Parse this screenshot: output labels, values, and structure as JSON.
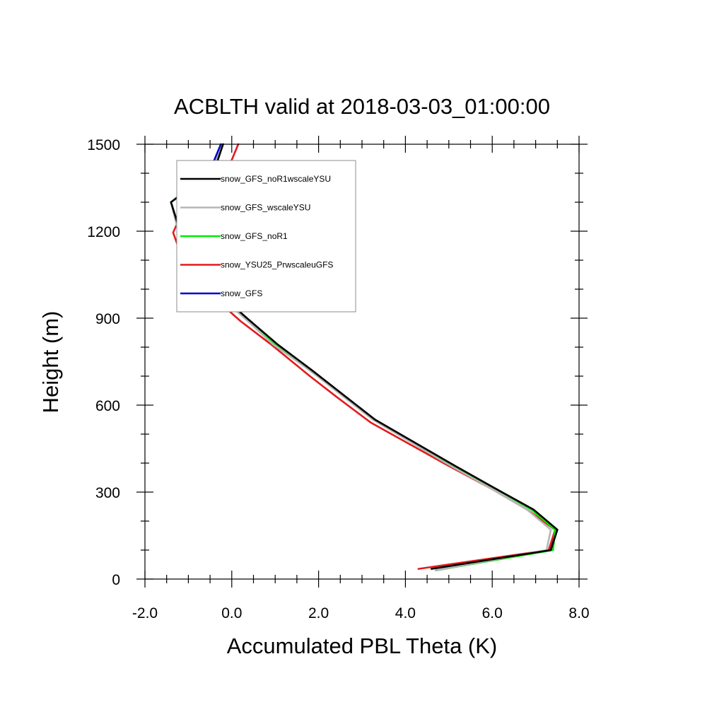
{
  "chart_data": {
    "type": "line",
    "title": "ACBLTH valid at 2018-03-03_01:00:00",
    "xlabel": "Accumulated PBL Theta (K)",
    "ylabel": "Height (m)",
    "xlim": [
      -2.0,
      8.0
    ],
    "ylim": [
      0,
      1500
    ],
    "x_ticks": [
      -2.0,
      0.0,
      2.0,
      4.0,
      6.0,
      8.0
    ],
    "x_tick_labels": [
      "-2.0",
      "0.0",
      "2.0",
      "4.0",
      "6.0",
      "8.0"
    ],
    "y_ticks": [
      0,
      300,
      600,
      900,
      1200,
      1500
    ],
    "y_tick_labels": [
      "0",
      "300",
      "600",
      "900",
      "1200",
      "1500"
    ],
    "grid": false,
    "legend_position": "top-left",
    "series": [
      {
        "name": "snow_GFS",
        "color": "#0000cc",
        "points": [
          [
            4.7,
            30
          ],
          [
            7.3,
            100
          ],
          [
            7.5,
            170
          ],
          [
            6.9,
            240
          ],
          [
            6.1,
            310
          ],
          [
            5.1,
            390
          ],
          [
            3.3,
            550
          ],
          [
            1.8,
            720
          ],
          [
            1.0,
            810
          ],
          [
            0.3,
            900
          ],
          [
            -0.3,
            980
          ],
          [
            -0.8,
            1070
          ],
          [
            -1.15,
            1180
          ],
          [
            -1.4,
            1300
          ],
          [
            -0.5,
            1410
          ],
          [
            -0.25,
            1500
          ]
        ]
      },
      {
        "name": "snow_YSU25_PrwscaleuGFS",
        "color": "#e41a1c",
        "points": [
          [
            4.3,
            35
          ],
          [
            7.3,
            100
          ],
          [
            7.45,
            170
          ],
          [
            6.8,
            240
          ],
          [
            6.0,
            310
          ],
          [
            5.0,
            390
          ],
          [
            3.2,
            540
          ],
          [
            2.4,
            630
          ],
          [
            1.8,
            700
          ],
          [
            0.9,
            810
          ],
          [
            0.2,
            890
          ],
          [
            -0.4,
            970
          ],
          [
            -0.7,
            1030
          ],
          [
            -1.1,
            1090
          ],
          [
            -1.35,
            1195
          ],
          [
            -1.05,
            1300
          ],
          [
            -0.1,
            1410
          ],
          [
            0.15,
            1500
          ]
        ]
      },
      {
        "name": "snow_GFS_noR1",
        "color": "#00ee00",
        "points": [
          [
            4.7,
            30
          ],
          [
            7.4,
            100
          ],
          [
            7.45,
            170
          ],
          [
            6.9,
            240
          ],
          [
            6.1,
            310
          ],
          [
            5.1,
            390
          ],
          [
            3.3,
            550
          ],
          [
            1.8,
            720
          ],
          [
            1.0,
            810
          ],
          [
            0.3,
            900
          ],
          [
            -0.3,
            980
          ],
          [
            -0.8,
            1070
          ],
          [
            -1.15,
            1180
          ],
          [
            -1.4,
            1300
          ],
          [
            -0.45,
            1410
          ],
          [
            -0.2,
            1500
          ]
        ]
      },
      {
        "name": "snow_GFS_wscaleYSU",
        "color": "#b5b5b5",
        "points": [
          [
            4.7,
            30
          ],
          [
            7.25,
            100
          ],
          [
            7.35,
            170
          ],
          [
            6.8,
            240
          ],
          [
            6.0,
            310
          ],
          [
            5.05,
            390
          ],
          [
            3.25,
            550
          ],
          [
            1.8,
            720
          ],
          [
            0.95,
            810
          ],
          [
            0.3,
            900
          ],
          [
            -0.3,
            980
          ],
          [
            -0.85,
            1070
          ],
          [
            -1.2,
            1180
          ],
          [
            -1.4,
            1300
          ],
          [
            -0.45,
            1410
          ],
          [
            -0.2,
            1500
          ]
        ]
      },
      {
        "name": "snow_GFS_noR1wscaleYSU",
        "color": "#000000",
        "points": [
          [
            4.6,
            35
          ],
          [
            7.35,
            100
          ],
          [
            7.5,
            170
          ],
          [
            6.95,
            240
          ],
          [
            6.1,
            310
          ],
          [
            5.15,
            390
          ],
          [
            3.3,
            550
          ],
          [
            1.85,
            720
          ],
          [
            1.05,
            810
          ],
          [
            0.35,
            900
          ],
          [
            -0.25,
            980
          ],
          [
            -0.8,
            1070
          ],
          [
            -1.15,
            1180
          ],
          [
            -1.4,
            1300
          ],
          [
            -0.4,
            1410
          ],
          [
            -0.2,
            1500
          ]
        ]
      }
    ],
    "legend_order": [
      "snow_GFS_noR1wscaleYSU",
      "snow_GFS_wscaleYSU",
      "snow_GFS_noR1",
      "snow_YSU25_PrwscaleuGFS",
      "snow_GFS"
    ]
  }
}
